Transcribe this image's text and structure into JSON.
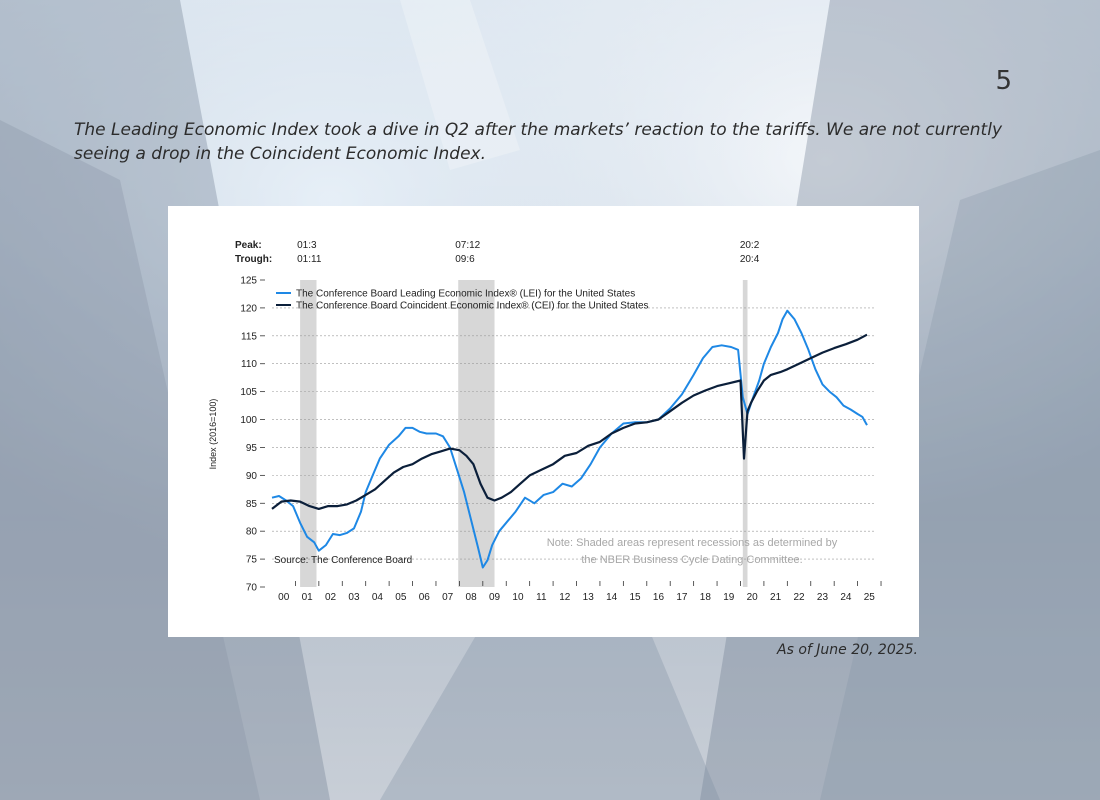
{
  "page_number": "5",
  "caption": "The Leading Economic Index took a dive in Q2 after the markets’ reaction to the tariffs. We are not currently seeing a drop in the Coincident Economic Index.",
  "as_of": "As of June 20, 2025.",
  "chart_data": {
    "type": "line",
    "ylabel": "Index (2016=100)",
    "ylim": [
      70,
      125
    ],
    "yticks": [
      70,
      75,
      80,
      85,
      90,
      95,
      100,
      105,
      110,
      115,
      120,
      125
    ],
    "xlim": [
      2000,
      2025.7
    ],
    "xtick_labels": [
      "00",
      "01",
      "02",
      "03",
      "04",
      "05",
      "06",
      "07",
      "08",
      "09",
      "10",
      "11",
      "12",
      "13",
      "14",
      "15",
      "16",
      "17",
      "18",
      "19",
      "20",
      "21",
      "22",
      "23",
      "24",
      "25"
    ],
    "peak_label": "Peak:",
    "trough_label": "Trough:",
    "recessions": [
      {
        "peak": "01:3",
        "trough": "01:11",
        "start": 2001.2,
        "end": 2001.9
      },
      {
        "peak": "07:12",
        "trough": "09:6",
        "start": 2007.95,
        "end": 2009.5
      },
      {
        "peak": "20:2",
        "trough": "20:4",
        "start": 2020.1,
        "end": 2020.3
      }
    ],
    "source": "Source: The Conference Board",
    "note_line1": "Note: Shaded areas represent recessions as determined by",
    "note_line2": "the NBER Business Cycle Dating Committee.",
    "series": [
      {
        "name": "The Conference Board Leading Economic Index® (LEI) for the United States",
        "color": "#1e88e5",
        "x": [
          2000.0,
          2000.3,
          2000.6,
          2000.9,
          2001.2,
          2001.5,
          2001.8,
          2002.0,
          2002.3,
          2002.6,
          2002.9,
          2003.2,
          2003.5,
          2003.8,
          2004.0,
          2004.3,
          2004.6,
          2005.0,
          2005.4,
          2005.7,
          2006.0,
          2006.3,
          2006.6,
          2007.0,
          2007.3,
          2007.6,
          2007.9,
          2008.2,
          2008.5,
          2008.8,
          2009.0,
          2009.2,
          2009.4,
          2009.7,
          2010.0,
          2010.4,
          2010.8,
          2011.2,
          2011.6,
          2012.0,
          2012.4,
          2012.8,
          2013.2,
          2013.6,
          2014.0,
          2014.5,
          2015.0,
          2015.5,
          2016.0,
          2016.5,
          2017.0,
          2017.5,
          2018.0,
          2018.4,
          2018.8,
          2019.2,
          2019.6,
          2019.9,
          2020.1,
          2020.3,
          2020.5,
          2020.8,
          2021.0,
          2021.3,
          2021.6,
          2021.8,
          2022.0,
          2022.3,
          2022.6,
          2022.9,
          2023.2,
          2023.5,
          2023.8,
          2024.1,
          2024.4,
          2024.7,
          2025.0,
          2025.2,
          2025.4
        ],
        "values": [
          86,
          86.3,
          85.5,
          84.5,
          81.5,
          79,
          78,
          76.5,
          77.5,
          79.5,
          79.3,
          79.7,
          80.5,
          83.5,
          87,
          90,
          93,
          95.5,
          97,
          98.5,
          98.5,
          97.8,
          97.5,
          97.5,
          97,
          95,
          91,
          87,
          82,
          77,
          73.5,
          74.8,
          77.5,
          80,
          81.5,
          83.5,
          86,
          85,
          86.5,
          87,
          88.5,
          88,
          89.5,
          92,
          95,
          97.5,
          99.3,
          99.5,
          99.5,
          100,
          102,
          104.5,
          108,
          111,
          113,
          113.3,
          113,
          112.5,
          104,
          101,
          103.5,
          107,
          110,
          113,
          115.5,
          118,
          119.5,
          118,
          115.5,
          112.5,
          109,
          106.3,
          105,
          104,
          102.5,
          101.8,
          101,
          100.5,
          99
        ]
      },
      {
        "name": "The Conference Board Coincident Economic Index® (CEI) for the United States",
        "color": "#0b1f3a",
        "x": [
          2000.0,
          2000.4,
          2000.8,
          2001.2,
          2001.6,
          2002.0,
          2002.4,
          2002.8,
          2003.2,
          2003.6,
          2004.0,
          2004.4,
          2004.8,
          2005.2,
          2005.6,
          2006.0,
          2006.4,
          2006.8,
          2007.2,
          2007.6,
          2008.0,
          2008.3,
          2008.6,
          2008.9,
          2009.2,
          2009.5,
          2009.8,
          2010.2,
          2010.6,
          2011.0,
          2011.5,
          2012.0,
          2012.5,
          2013.0,
          2013.5,
          2014.0,
          2014.5,
          2015.0,
          2015.5,
          2016.0,
          2016.5,
          2017.0,
          2017.5,
          2018.0,
          2018.5,
          2019.0,
          2019.5,
          2020.0,
          2020.15,
          2020.3,
          2020.45,
          2020.7,
          2021.0,
          2021.3,
          2021.7,
          2022.0,
          2022.5,
          2023.0,
          2023.5,
          2024.0,
          2024.5,
          2025.0,
          2025.4
        ],
        "values": [
          84,
          85.3,
          85.5,
          85.3,
          84.5,
          84,
          84.5,
          84.5,
          84.8,
          85.5,
          86.5,
          87.5,
          89,
          90.5,
          91.5,
          92,
          93,
          93.8,
          94.3,
          94.8,
          94.5,
          93.5,
          92,
          88.5,
          86,
          85.5,
          86,
          87,
          88.5,
          90,
          91,
          92,
          93.5,
          94,
          95.3,
          96,
          97.5,
          98.5,
          99.3,
          99.5,
          100,
          101.5,
          103,
          104.3,
          105.2,
          106,
          106.5,
          107,
          93,
          101.5,
          103,
          105,
          107,
          108,
          108.5,
          109,
          110,
          111,
          112,
          112.8,
          113.5,
          114.3,
          115.2
        ]
      }
    ]
  }
}
